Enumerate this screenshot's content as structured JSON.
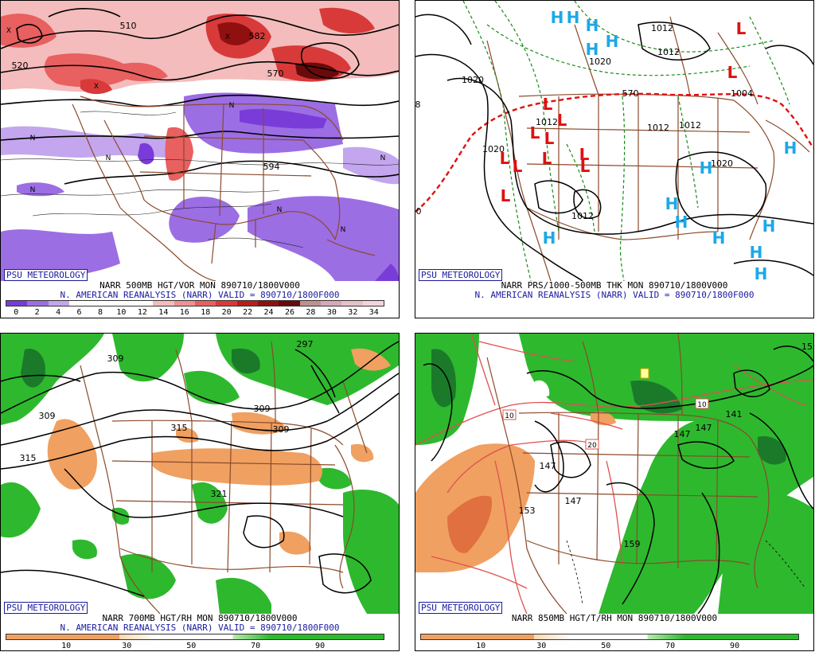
{
  "panels": [
    {
      "badge": "PSU METEOROLOGY",
      "line1": "NARR 500MB HGT/VOR MON 890710/1800V000",
      "line2": "N. AMERICAN REANALYSIS (NARR) VALID = 890710/1800F000",
      "colorbar": {
        "ticks": [
          "0",
          "2",
          "4",
          "6",
          "8",
          "10",
          "12",
          "14",
          "16",
          "18",
          "20",
          "22",
          "24",
          "26",
          "28",
          "30",
          "32",
          "34"
        ],
        "colors": [
          "#7a3cd8",
          "#9b6ee4",
          "#c3a6ee",
          "#ffffff",
          "#ffffff",
          "#ffffff",
          "#ffffff",
          "#f4bcbc",
          "#f09090",
          "#e86060",
          "#d83a3a",
          "#b81e1e",
          "#901010",
          "#6a0a0a",
          "#c09090",
          "#d8a8b8",
          "#e8c0c8",
          "#f4d4da"
        ]
      },
      "contour_labels": [
        "510",
        "520",
        "570",
        "582",
        "594"
      ],
      "symbols": [
        "N",
        "X"
      ]
    },
    {
      "badge": "PSU METEOROLOGY",
      "line1": "NARR PRS/1000-500MB THK MON 890710/1800V000",
      "line2": "N. AMERICAN REANALYSIS (NARR) VALID = 890710/1800F000",
      "contour_labels": [
        "1020",
        "1012",
        "1012",
        "1020",
        "1012",
        "1012",
        "1012",
        "1020",
        "1004",
        "1012",
        "1020",
        "1012",
        "570",
        "8",
        "0"
      ],
      "symbols": [
        "H",
        "L"
      ]
    },
    {
      "badge": "PSU METEOROLOGY",
      "line1": "NARR 700MB HGT/RH MON 890710/1800V000",
      "line2": "N. AMERICAN REANALYSIS (NARR) VALID = 890710/1800F000",
      "colorbar": {
        "ticks": [
          "10",
          "30",
          "50",
          "70",
          "90"
        ]
      },
      "contour_labels": [
        "309",
        "309",
        "315",
        "315",
        "309",
        "309",
        "321",
        "297"
      ]
    },
    {
      "badge": "PSU METEOROLOGY",
      "line1": "NARR 850MB HGT/T/RH MON 890710/1800V000",
      "colorbar": {
        "ticks": [
          "10",
          "30",
          "50",
          "70",
          "90"
        ]
      },
      "contour_labels": [
        "147",
        "147",
        "153",
        "159",
        "141",
        "147",
        "147",
        "15"
      ],
      "temp_labels": [
        "10",
        "20",
        "10"
      ]
    }
  ],
  "colors": {
    "border_map": "#8b4a2b",
    "badge_text": "#1a1aa0",
    "high_symbol": "#1ca8e8",
    "low_symbol": "#e01010",
    "rh_moist": "#2eb82e",
    "rh_dry": "#f0a060"
  }
}
